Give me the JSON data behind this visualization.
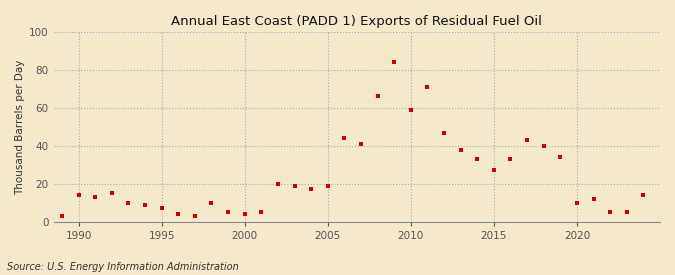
{
  "title": "Annual East Coast (PADD 1) Exports of Residual Fuel Oil",
  "ylabel": "Thousand Barrels per Day",
  "source": "Source: U.S. Energy Information Administration",
  "background_color": "#f5e9cc",
  "marker_color": "#cc0000",
  "xlim": [
    1988.5,
    2025
  ],
  "ylim": [
    0,
    100
  ],
  "yticks": [
    0,
    20,
    40,
    60,
    80,
    100
  ],
  "xticks": [
    1990,
    1995,
    2000,
    2005,
    2010,
    2015,
    2020
  ],
  "years": [
    1989,
    1990,
    1991,
    1992,
    1993,
    1994,
    1995,
    1996,
    1997,
    1998,
    1999,
    2000,
    2001,
    2002,
    2003,
    2004,
    2005,
    2006,
    2007,
    2008,
    2009,
    2010,
    2011,
    2012,
    2013,
    2014,
    2015,
    2016,
    2017,
    2018,
    2019,
    2020,
    2021,
    2022,
    2023,
    2024
  ],
  "values": [
    3,
    14,
    13,
    15,
    10,
    9,
    7,
    4,
    3,
    10,
    5,
    4,
    5,
    20,
    19,
    17,
    19,
    44,
    41,
    66,
    84,
    59,
    71,
    47,
    38,
    33,
    27,
    33,
    43,
    40,
    34,
    10,
    12,
    5,
    5,
    14
  ]
}
